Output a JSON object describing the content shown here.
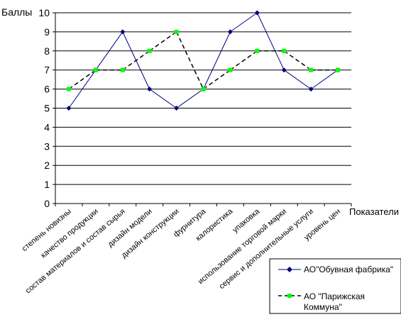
{
  "chart_data": {
    "type": "line",
    "ylabel": "Баллы",
    "xlabel": "Показатели",
    "ylim": [
      0,
      10
    ],
    "ytick_step": 1,
    "grid": true,
    "legend_position": "bottom-right",
    "categories": [
      "степень новизны",
      "качество продукции",
      "состав материалов и состав сырья",
      "дизайн модели",
      "дизайн конструкции",
      "фурнитура",
      "калористика",
      "упаковка",
      "использование торговой марки",
      "сервис и дополнительные услуги",
      "уровень цен"
    ],
    "series": [
      {
        "name": "АО\"Обувная фабрика\"",
        "values": [
          5,
          7,
          9,
          6,
          5,
          6,
          9,
          10,
          7,
          6,
          7
        ],
        "color": "#000080",
        "marker": "diamond",
        "line_style": "solid"
      },
      {
        "name": "АО \"Парижская Коммуна\"",
        "values": [
          6,
          7,
          7,
          8,
          9,
          6,
          7,
          8,
          8,
          7,
          7
        ],
        "color": "#00ff00",
        "marker": "square",
        "line_style": "dashed"
      }
    ]
  }
}
